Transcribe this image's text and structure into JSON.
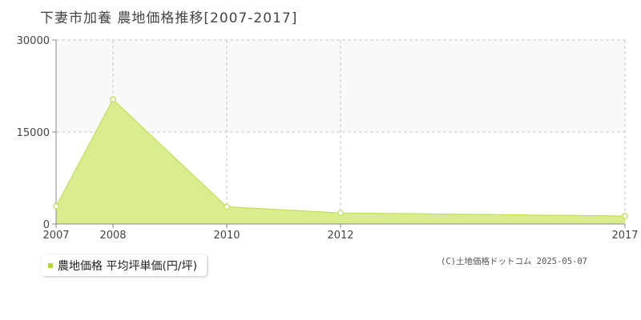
{
  "title": "下妻市加養  農地価格推移[2007-2017]",
  "legend": {
    "label": "農地価格 平均坪単価(円/坪)"
  },
  "credit": "(C)土地価格ドットコム 2025-05-07",
  "colors": {
    "area_fill": "#dbec8e",
    "line": "#c3df5a",
    "grid": "#c8c8c8",
    "upper_band": "#f9f9f9",
    "legend_swatch": "#b5d736"
  },
  "chart_data": {
    "type": "area",
    "title": "下妻市加養  農地価格推移[2007-2017]",
    "x_ticks": [
      "2007",
      "2008",
      "2010",
      "2012",
      "2017"
    ],
    "y_ticks": [
      "30000",
      "15000",
      "0"
    ],
    "ylim": [
      0,
      30000
    ],
    "grid": true,
    "legend_position": "bottom-left",
    "series": [
      {
        "name": "農地価格 平均坪単価(円/坪)",
        "x": [
          "2007",
          "2008",
          "2010",
          "2012",
          "2017"
        ],
        "values": [
          2900,
          20300,
          2800,
          1800,
          1300
        ]
      }
    ]
  }
}
